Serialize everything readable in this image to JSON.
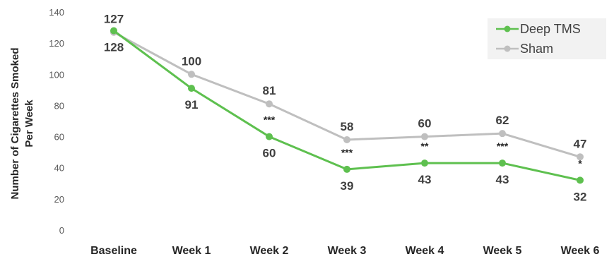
{
  "chart_data": {
    "type": "line",
    "categories": [
      "Baseline",
      "Week 1",
      "Week 2",
      "Week 3",
      "Week 4",
      "Week 5",
      "Week 6"
    ],
    "ylabel_line1": "Number of Cigarettes Smoked",
    "ylabel_line2": "Per Week",
    "ylim": [
      0,
      140
    ],
    "yticks": [
      0,
      20,
      40,
      60,
      80,
      100,
      120,
      140
    ],
    "grid": false,
    "legend_position": "top-right",
    "series": [
      {
        "name": "Deep TMS",
        "color": "#5ec04f",
        "values": [
          128,
          91,
          60,
          39,
          43,
          43,
          32
        ],
        "labels": [
          "128",
          "91",
          "60",
          "39",
          "43",
          "43",
          "32"
        ],
        "label_position": "below"
      },
      {
        "name": "Sham",
        "color": "#bfbfbf",
        "values": [
          127,
          100,
          81,
          58,
          60,
          62,
          47
        ],
        "labels": [
          "127",
          "100",
          "81",
          "58",
          "60",
          "62",
          "47"
        ],
        "label_position": "above"
      }
    ],
    "significance": [
      "",
      "",
      "***",
      "***",
      "**",
      "***",
      "*"
    ]
  }
}
